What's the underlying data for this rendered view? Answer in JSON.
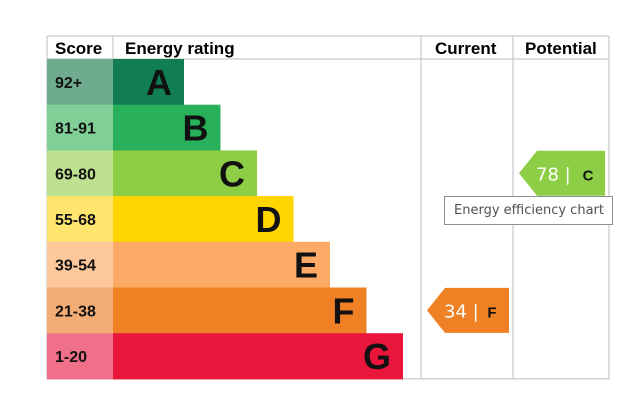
{
  "chart_data": {
    "type": "bar",
    "headers": {
      "score": "Score",
      "rating": "Energy rating",
      "current": "Current",
      "potential": "Potential"
    },
    "bands": [
      {
        "score": "92+",
        "letter": "A",
        "color": "#117d52",
        "score_bg": "#6fab8f"
      },
      {
        "score": "81-91",
        "letter": "B",
        "color": "#29b05a",
        "score_bg": "#7fcf96"
      },
      {
        "score": "69-80",
        "letter": "C",
        "color": "#8dce46",
        "score_bg": "#bde190"
      },
      {
        "score": "55-68",
        "letter": "D",
        "color": "#ffd500",
        "score_bg": "#ffe56e"
      },
      {
        "score": "39-54",
        "letter": "E",
        "color": "#fcaa65",
        "score_bg": "#fdc89b"
      },
      {
        "score": "21-38",
        "letter": "F",
        "color": "#ef8023",
        "score_bg": "#f4ac75"
      },
      {
        "score": "1-20",
        "letter": "G",
        "color": "#e9153b",
        "score_bg": "#ef7088"
      }
    ],
    "current": {
      "value": 34,
      "band": "F",
      "label": "34 |",
      "letter": "F",
      "color": "#ef8023"
    },
    "potential": {
      "value": 78,
      "band": "C",
      "label": "78 |",
      "letter": "C",
      "color": "#8dce46"
    }
  },
  "tooltip": "Energy efficiency chart"
}
